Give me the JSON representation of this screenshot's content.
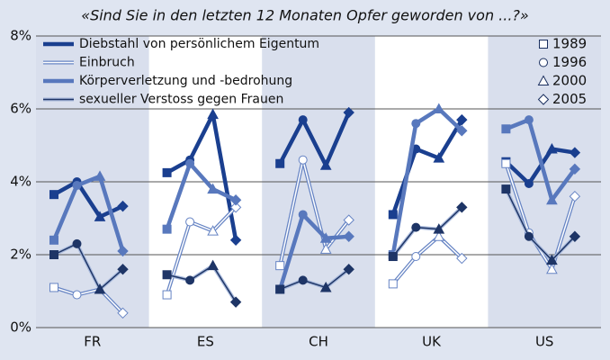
{
  "chart_data": {
    "type": "line",
    "title": "«Sind Sie in den letzten 12 Monaten Opfer geworden von ...?»",
    "categories": [
      "FR",
      "ES",
      "CH",
      "UK",
      "US"
    ],
    "years": [
      {
        "label": "1989",
        "marker": "square"
      },
      {
        "label": "1996",
        "marker": "circle"
      },
      {
        "label": "2000",
        "marker": "triangle"
      },
      {
        "label": "2005",
        "marker": "diamond"
      }
    ],
    "series": [
      {
        "name": "Diebstahl von persönlichem Eigentum",
        "color": "#1a3f8f",
        "values": [
          [
            3.65,
            4.0,
            3.04,
            3.33
          ],
          [
            4.25,
            4.6,
            5.85,
            2.4
          ],
          [
            4.5,
            5.7,
            4.45,
            5.9
          ],
          [
            3.1,
            4.9,
            4.65,
            5.7
          ],
          [
            4.55,
            3.95,
            4.9,
            4.8
          ]
        ]
      },
      {
        "name": "Einbruch",
        "color": "#6684c4",
        "values": [
          [
            1.1,
            0.9,
            1.05,
            0.4
          ],
          [
            0.9,
            2.9,
            2.65,
            3.3
          ],
          [
            1.7,
            4.6,
            2.15,
            2.95
          ],
          [
            1.2,
            1.95,
            2.5,
            1.9
          ],
          [
            4.5,
            2.6,
            1.6,
            3.6
          ]
        ]
      },
      {
        "name": "Körperverletzung und -bedrohung",
        "color": "#5878bd",
        "values": [
          [
            2.4,
            3.9,
            4.15,
            2.1
          ],
          [
            2.7,
            4.5,
            3.8,
            3.5
          ],
          [
            1.05,
            3.1,
            2.45,
            2.5
          ],
          [
            2.0,
            5.6,
            6.0,
            5.4
          ],
          [
            5.45,
            5.7,
            3.5,
            4.35
          ]
        ]
      },
      {
        "name": "sexueller Verstoss gegen Frauen",
        "color": "#1e3566",
        "values": [
          [
            2.0,
            2.3,
            1.05,
            1.6
          ],
          [
            1.45,
            1.3,
            1.7,
            0.7
          ],
          [
            1.05,
            1.3,
            1.1,
            1.6
          ],
          [
            1.95,
            2.75,
            2.7,
            3.3
          ],
          [
            3.8,
            2.5,
            1.85,
            2.5
          ]
        ]
      }
    ],
    "ylim": [
      0,
      8
    ],
    "yticks": [
      {
        "value": 0,
        "label": "0%"
      },
      {
        "value": 2,
        "label": "2%"
      },
      {
        "value": 4,
        "label": "4%"
      },
      {
        "value": 6,
        "label": "6%"
      },
      {
        "value": 8,
        "label": "8%"
      }
    ],
    "grid": true
  }
}
